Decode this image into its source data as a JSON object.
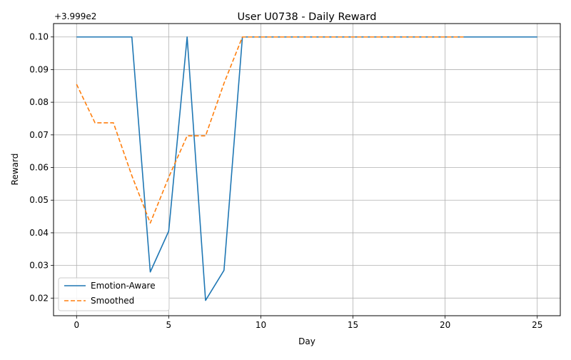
{
  "chart_data": {
    "type": "line",
    "title": "User U0738 - Daily Reward",
    "xlabel": "Day",
    "ylabel": "Reward",
    "offset_label": "+3.999e2",
    "y_offset": 399.9,
    "xlim": [
      -1.25,
      26.25
    ],
    "ylim": [
      0.0146,
      0.1041
    ],
    "xticks": [
      0,
      5,
      10,
      15,
      20,
      25
    ],
    "xtick_labels": [
      "0",
      "5",
      "10",
      "15",
      "20",
      "25"
    ],
    "yticks": [
      0.02,
      0.03,
      0.04,
      0.05,
      0.06,
      0.07,
      0.08,
      0.09,
      0.1
    ],
    "ytick_labels": [
      "0.02",
      "0.03",
      "0.04",
      "0.05",
      "0.06",
      "0.07",
      "0.08",
      "0.09",
      "0.10"
    ],
    "grid": true,
    "legend": "lower-left",
    "series": [
      {
        "name": "Emotion-Aware",
        "color": "#1f77b4",
        "style": "solid",
        "x": [
          0,
          1,
          2,
          3,
          4,
          5,
          6,
          7,
          8,
          9,
          10,
          11,
          12,
          13,
          14,
          15,
          16,
          17,
          18,
          19,
          20,
          21,
          22,
          23,
          24,
          25
        ],
        "values": [
          0.1,
          0.1,
          0.1,
          0.1,
          0.028,
          0.0405,
          0.1,
          0.0193,
          0.0285,
          0.1,
          0.1,
          0.1,
          0.1,
          0.1,
          0.1,
          0.1,
          0.1,
          0.1,
          0.1,
          0.1,
          0.1,
          0.1,
          0.1,
          0.1,
          0.1,
          0.1
        ]
      },
      {
        "name": "Smoothed",
        "color": "#ff7f0e",
        "style": "dashed",
        "x": [
          0,
          1,
          2,
          3,
          4,
          5,
          6,
          7,
          8,
          9,
          10,
          11,
          12,
          13,
          14,
          15,
          16,
          17,
          18,
          19,
          20,
          21
        ],
        "values": [
          0.0855,
          0.0737,
          0.0737,
          0.0575,
          0.043,
          0.057,
          0.0697,
          0.0697,
          0.0858,
          0.1,
          0.1,
          0.1,
          0.1,
          0.1,
          0.1,
          0.1,
          0.1,
          0.1,
          0.1,
          0.1,
          0.1,
          0.1
        ]
      }
    ]
  }
}
